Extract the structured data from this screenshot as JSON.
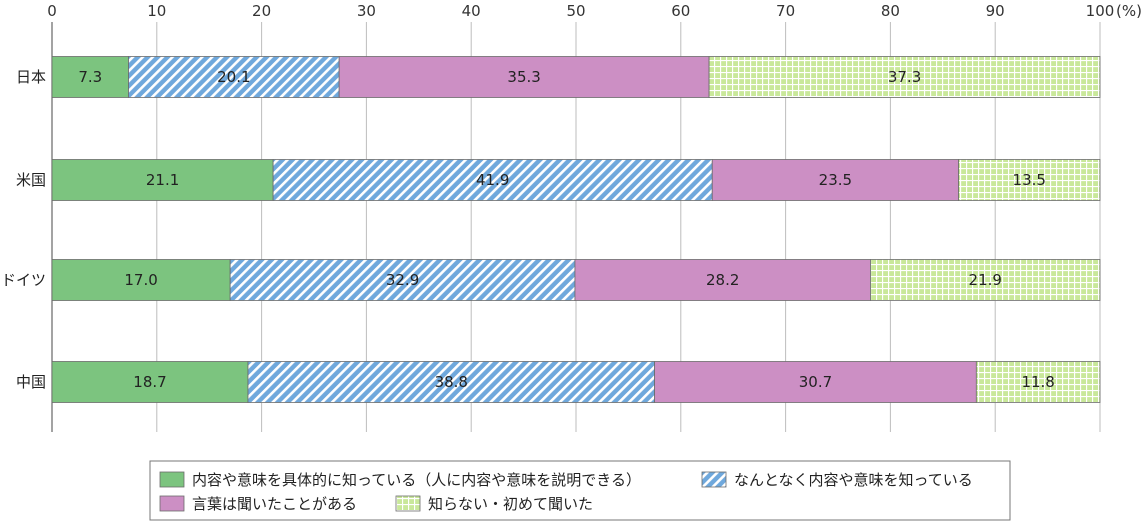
{
  "chart_data": {
    "type": "bar",
    "orientation": "horizontal",
    "stacked": true,
    "title": "",
    "xlabel": "",
    "ylabel": "",
    "unit_label": "(%)",
    "xlim": [
      0,
      100
    ],
    "xticks": [
      0,
      10,
      20,
      30,
      40,
      50,
      60,
      70,
      80,
      90,
      100
    ],
    "grid": true,
    "legend_position": "bottom",
    "categories": [
      "日本",
      "米国",
      "ドイツ",
      "中国"
    ],
    "series": [
      {
        "name": "内容や意味を具体的に知っている（人に内容や意味を説明できる）",
        "values": [
          7.3,
          21.1,
          17.0,
          18.7
        ],
        "color": "#7cc47f",
        "pattern": "solid"
      },
      {
        "name": "なんとなく内容や意味を知っている",
        "values": [
          20.1,
          41.9,
          32.9,
          38.8
        ],
        "color": "#6fa8dc",
        "pattern": "diagonal-hatch"
      },
      {
        "name": "言葉は聞いたことがある",
        "values": [
          35.3,
          23.5,
          28.2,
          30.7
        ],
        "color": "#cc8fc4",
        "pattern": "solid"
      },
      {
        "name": "知らない・初めて聞いた",
        "values": [
          37.3,
          13.5,
          21.9,
          11.8
        ],
        "color": "#c9e89a",
        "pattern": "grid"
      }
    ]
  }
}
